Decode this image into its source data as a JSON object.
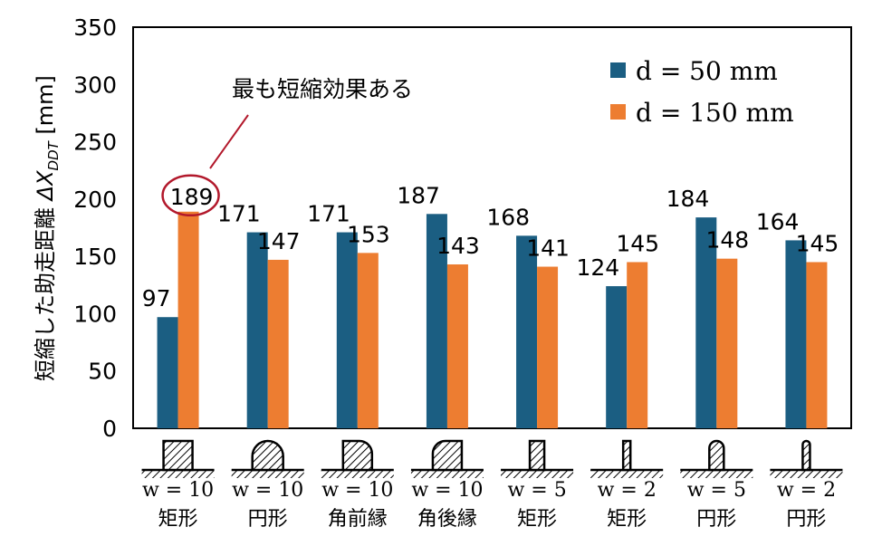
{
  "chart_data": {
    "type": "bar",
    "ylabel": "短縮した助走距離 ΔX_DDT [mm]",
    "ylabel_main": "短縮した助走距離 ",
    "ylabel_symbol": "ΔX",
    "ylabel_sub": "DDT",
    "ylabel_unit": " [mm]",
    "ylim": [
      0,
      350
    ],
    "yticks": [
      0,
      50,
      100,
      150,
      200,
      250,
      300,
      350
    ],
    "grid": false,
    "legend_position": "top-right",
    "colors": {
      "d50": "#1b5e82",
      "d150": "#ed7d31",
      "annotation": "#b2182b"
    },
    "categories": [
      {
        "w": "w = 10",
        "name": "矩形",
        "shape": "rect-wide"
      },
      {
        "w": "w = 10",
        "name": "円形",
        "shape": "round-wide"
      },
      {
        "w": "w = 10",
        "name": "角前縁",
        "shape": "front-round-corner"
      },
      {
        "w": "w = 10",
        "name": "角後縁",
        "shape": "rear-round-corner"
      },
      {
        "w": "w = 5",
        "name": "矩形",
        "shape": "rect-medium"
      },
      {
        "w": "w = 2",
        "name": "矩形",
        "shape": "rect-thin"
      },
      {
        "w": "w = 5",
        "name": "円形",
        "shape": "round-medium"
      },
      {
        "w": "w = 2",
        "name": "円形",
        "shape": "round-thin"
      }
    ],
    "series": [
      {
        "name": "d = 50 mm",
        "color_key": "d50",
        "values": [
          97,
          171,
          171,
          187,
          168,
          124,
          184,
          164
        ]
      },
      {
        "name": "d = 150 mm",
        "color_key": "d150",
        "values": [
          189,
          147,
          153,
          143,
          141,
          145,
          148,
          145
        ]
      }
    ],
    "annotation": {
      "text": "最も短縮効果ある",
      "target_category": 0,
      "target_series": 1
    }
  }
}
